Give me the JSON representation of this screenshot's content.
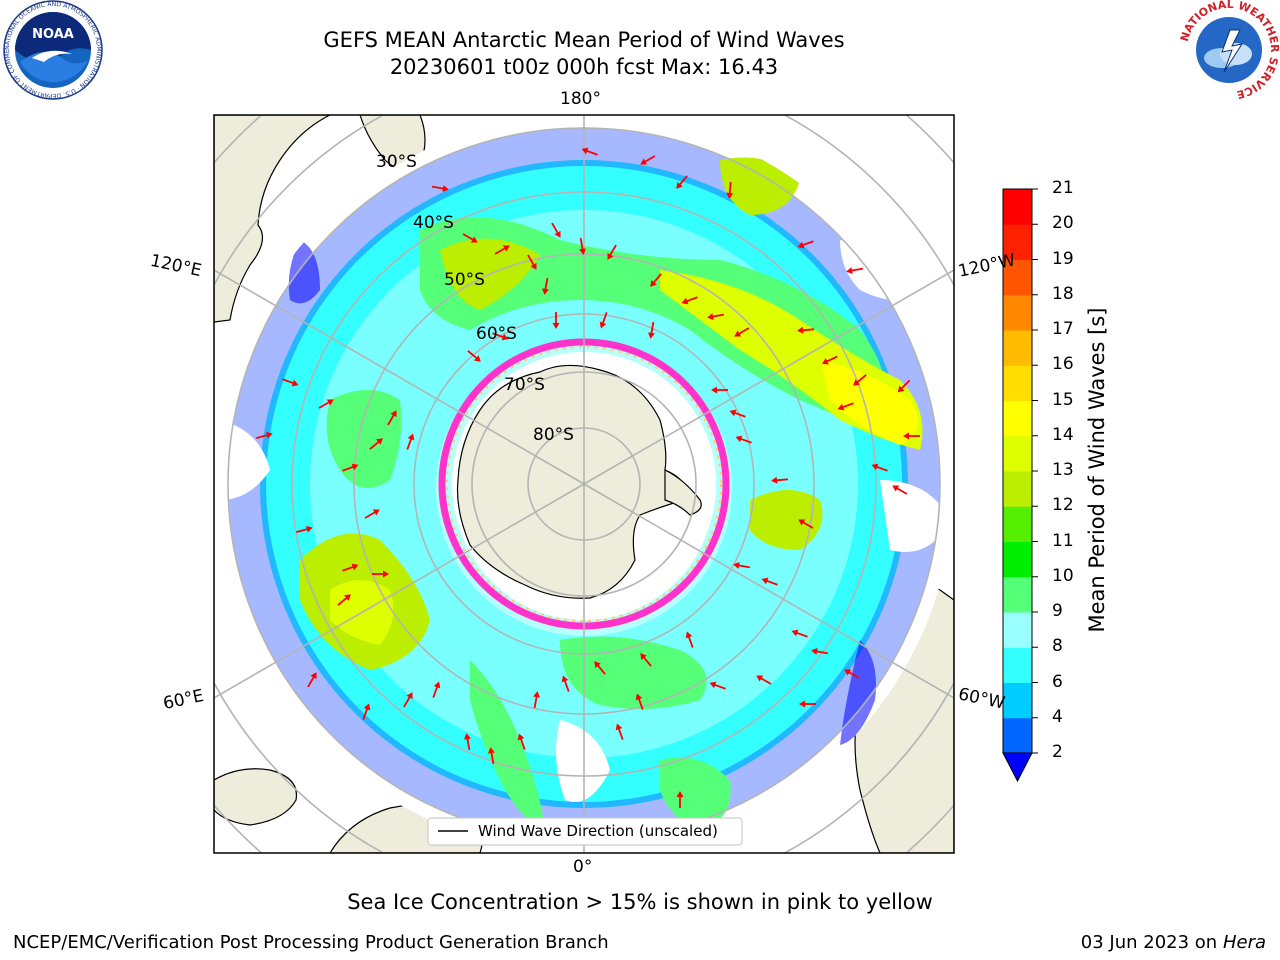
{
  "header": {
    "title_line1": "GEFS MEAN Antarctic Mean Period of Wind Waves",
    "title_line2": "20230601 t00z 000h fcst   Max: 16.43"
  },
  "logos": {
    "noaa_text": "NOAA",
    "noaa_ring": "NATIONAL OCEANIC AND ATMOSPHERIC ADMINISTRATION · U.S. DEPARTMENT OF COMMERCE",
    "nws_ring": "NATIONAL WEATHER SERVICE"
  },
  "map": {
    "lon_labels": {
      "top": "180°",
      "bottom": "0°",
      "upper_left": "120°E",
      "upper_right": "120°W",
      "lower_left": "60°E",
      "lower_right": "60°W"
    },
    "lat_labels": [
      "30°S",
      "40°S",
      "50°S",
      "60°S",
      "70°S",
      "80°S"
    ],
    "legend": "Wind Wave Direction (unscaled)",
    "colors": {
      "land": "#eeecda",
      "ocean": "#ffffff",
      "graticule": "#b4b4b4",
      "arrow": "#ff0000",
      "ice_edge": "#ff33cc"
    }
  },
  "colorbar": {
    "label": "Mean Period of Wind Waves [s]",
    "ticks": [
      "2",
      "4",
      "6",
      "8",
      "9",
      "10",
      "11",
      "12",
      "13",
      "14",
      "15",
      "16",
      "17",
      "18",
      "19",
      "20",
      "21"
    ],
    "colors": [
      "#0066ff",
      "#00ccff",
      "#33ffff",
      "#99ffff",
      "#55ff77",
      "#00ee00",
      "#55ee00",
      "#bbee00",
      "#ddff00",
      "#ffff00",
      "#ffdd00",
      "#ffbb00",
      "#ff8800",
      "#ff5500",
      "#ff2200",
      "#ff0000"
    ],
    "under_color": "#0000ff"
  },
  "caption": "Sea Ice Concentration > 15% is shown in pink to yellow",
  "footer": {
    "left": "NCEP/EMC/Verification Post Processing Product Generation Branch",
    "right_date": "03 Jun 2023 on",
    "right_machine": "Hera"
  }
}
